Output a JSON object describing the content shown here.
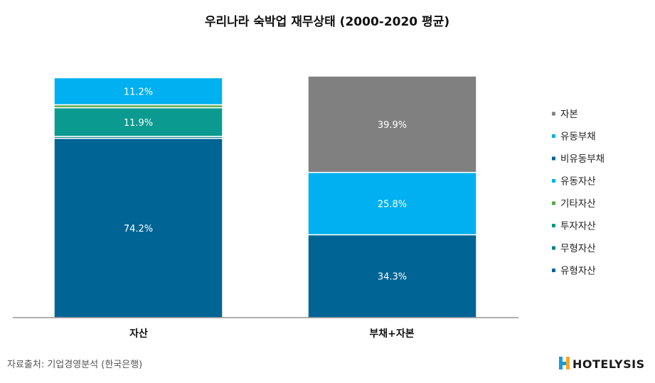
{
  "chart_data": {
    "type": "bar",
    "stacked": true,
    "title": "우리나라 숙박업 재무상태 (2000-2020 평균)",
    "categories": [
      "자산",
      "부채+자본"
    ],
    "ylim": [
      0,
      100
    ],
    "grid": false,
    "legend_position": "right",
    "series": [
      {
        "name": "유형자산",
        "color": "#006495",
        "values": [
          74.2,
          null
        ]
      },
      {
        "name": "무형자산",
        "color": "#0e7f8c",
        "values": [
          0.8,
          null
        ]
      },
      {
        "name": "투자자산",
        "color": "#0a9a8f",
        "values": [
          11.9,
          null
        ]
      },
      {
        "name": "기타자산",
        "color": "#5aa845",
        "values": [
          1.2,
          null
        ]
      },
      {
        "name": "유동자산",
        "color": "#00b0f0",
        "values": [
          11.2,
          null
        ]
      },
      {
        "name": "비유동부채",
        "color": "#006495",
        "values": [
          null,
          34.3
        ]
      },
      {
        "name": "유동부채",
        "color": "#00b0f0",
        "values": [
          null,
          25.8
        ]
      },
      {
        "name": "자본",
        "color": "#808080",
        "values": [
          null,
          39.9
        ]
      }
    ],
    "data_labels": [
      {
        "series": "유동자산",
        "category": "자산",
        "text": "11.2%"
      },
      {
        "series": "투자자산",
        "category": "자산",
        "text": "11.9%"
      },
      {
        "series": "유형자산",
        "category": "자산",
        "text": "74.2%"
      },
      {
        "series": "자본",
        "category": "부채+자본",
        "text": "39.9%"
      },
      {
        "series": "유동부채",
        "category": "부채+자본",
        "text": "25.8%"
      },
      {
        "series": "비유동부채",
        "category": "부채+자본",
        "text": "34.3%"
      }
    ],
    "legend": [
      "자본",
      "유동부채",
      "비유동부채",
      "유동자산",
      "기타자산",
      "투자자산",
      "무형자산",
      "유형자산"
    ]
  },
  "source": "자료출처: 기업경영분석 (한국은행)",
  "brand": {
    "name": "HOTELYSIS",
    "colors": {
      "primary": "#1b9ad6",
      "accent": "#f5a623"
    }
  }
}
